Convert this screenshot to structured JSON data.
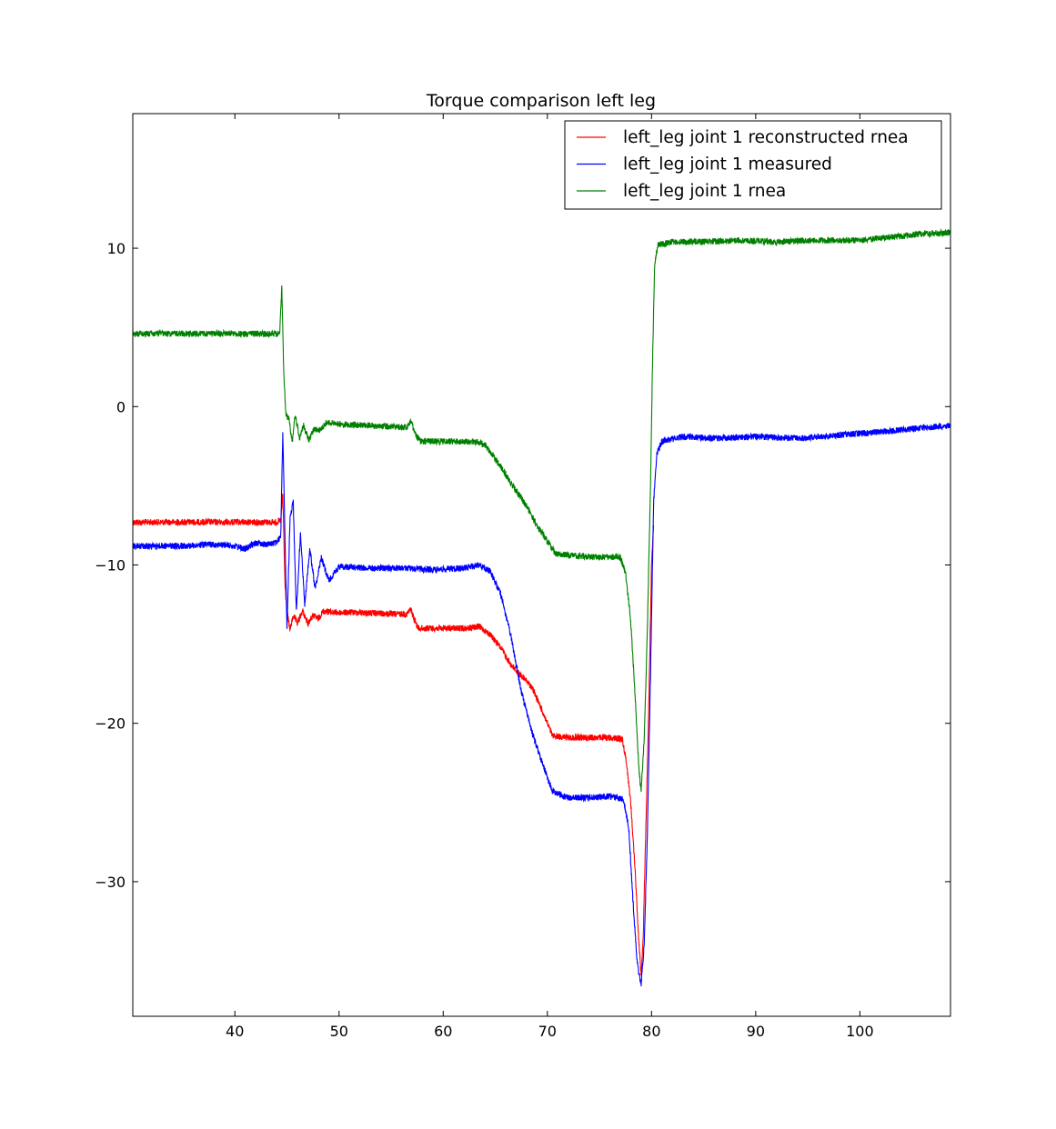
{
  "chart_data": {
    "type": "line",
    "title": "Torque comparison left leg",
    "xlabel": "",
    "ylabel": "",
    "xlim": [
      30.2,
      108.7
    ],
    "ylim": [
      -38.5,
      18.5
    ],
    "xticks": [
      40,
      50,
      60,
      70,
      80,
      90,
      100
    ],
    "yticks": [
      -30,
      -20,
      -10,
      0,
      10
    ],
    "ytick_labels": [
      "−30",
      "−20",
      "−10",
      "0",
      "10"
    ],
    "grid": false,
    "legend_position": "top-right",
    "series": [
      {
        "name": "left_leg joint 1 reconstructed rnea",
        "color": "#ff0000",
        "points": [
          [
            30.2,
            -7.3
          ],
          [
            36,
            -7.3
          ],
          [
            40,
            -7.3
          ],
          [
            44,
            -7.3
          ],
          [
            44.4,
            -7.2
          ],
          [
            44.6,
            -5.5
          ],
          [
            44.8,
            -11
          ],
          [
            45.0,
            -13
          ],
          [
            45.3,
            -14.1
          ],
          [
            45.6,
            -13.2
          ],
          [
            46.0,
            -13.7
          ],
          [
            46.5,
            -12.9
          ],
          [
            47.0,
            -13.7
          ],
          [
            47.5,
            -13.2
          ],
          [
            48.0,
            -13.4
          ],
          [
            48.5,
            -12.9
          ],
          [
            49.5,
            -13.0
          ],
          [
            52,
            -13.0
          ],
          [
            55,
            -13.1
          ],
          [
            56.5,
            -13.1
          ],
          [
            56.9,
            -12.8
          ],
          [
            57.2,
            -13.4
          ],
          [
            57.6,
            -14.0
          ],
          [
            59,
            -14.0
          ],
          [
            62,
            -14.0
          ],
          [
            63.5,
            -13.9
          ],
          [
            64.5,
            -14.4
          ],
          [
            65.5,
            -15.2
          ],
          [
            66.5,
            -16.3
          ],
          [
            67.5,
            -17.0
          ],
          [
            68.5,
            -17.7
          ],
          [
            69.5,
            -19.2
          ],
          [
            70.5,
            -20.8
          ],
          [
            72,
            -20.9
          ],
          [
            74,
            -20.9
          ],
          [
            76,
            -20.9
          ],
          [
            77.2,
            -21.0
          ],
          [
            77.6,
            -22.5
          ],
          [
            78.0,
            -25
          ],
          [
            78.4,
            -29
          ],
          [
            78.8,
            -34
          ],
          [
            79.0,
            -35.8
          ],
          [
            79.2,
            -33.5
          ],
          [
            79.4,
            -28
          ],
          [
            79.7,
            -20
          ],
          [
            80.0,
            -10
          ],
          [
            80.2,
            -7.5
          ]
        ]
      },
      {
        "name": "left_leg joint 1 measured",
        "color": "#0000ff",
        "points": [
          [
            30.2,
            -8.8
          ],
          [
            35,
            -8.8
          ],
          [
            38,
            -8.7
          ],
          [
            40,
            -8.8
          ],
          [
            41,
            -9.0
          ],
          [
            42,
            -8.6
          ],
          [
            43,
            -8.7
          ],
          [
            44,
            -8.6
          ],
          [
            44.4,
            -8.2
          ],
          [
            44.6,
            -1.5
          ],
          [
            44.8,
            -8
          ],
          [
            45.0,
            -14.0
          ],
          [
            45.3,
            -7
          ],
          [
            45.6,
            -6
          ],
          [
            45.9,
            -13
          ],
          [
            46.3,
            -8
          ],
          [
            46.7,
            -12.5
          ],
          [
            47.2,
            -9
          ],
          [
            47.7,
            -11.5
          ],
          [
            48.3,
            -9.5
          ],
          [
            49,
            -11
          ],
          [
            50,
            -10.1
          ],
          [
            53,
            -10.2
          ],
          [
            56,
            -10.2
          ],
          [
            59,
            -10.3
          ],
          [
            62,
            -10.2
          ],
          [
            63.5,
            -10.0
          ],
          [
            64.5,
            -10.4
          ],
          [
            65.5,
            -11.8
          ],
          [
            66.5,
            -14.5
          ],
          [
            67.5,
            -18
          ],
          [
            68.5,
            -20.5
          ],
          [
            69.5,
            -22.5
          ],
          [
            70.5,
            -24.3
          ],
          [
            72,
            -24.7
          ],
          [
            74,
            -24.7
          ],
          [
            76,
            -24.6
          ],
          [
            77.3,
            -24.8
          ],
          [
            77.8,
            -26.5
          ],
          [
            78.2,
            -31
          ],
          [
            78.6,
            -35
          ],
          [
            79.0,
            -36.5
          ],
          [
            79.3,
            -34
          ],
          [
            79.6,
            -27
          ],
          [
            79.9,
            -17
          ],
          [
            80.2,
            -6
          ],
          [
            80.5,
            -3
          ],
          [
            81,
            -2.2
          ],
          [
            83,
            -1.9
          ],
          [
            86,
            -2.0
          ],
          [
            90,
            -1.9
          ],
          [
            94,
            -2.0
          ],
          [
            98,
            -1.8
          ],
          [
            102,
            -1.6
          ],
          [
            105,
            -1.4
          ],
          [
            108.7,
            -1.2
          ]
        ]
      },
      {
        "name": "left_leg joint 1 rnea",
        "color": "#008000",
        "points": [
          [
            30.2,
            4.6
          ],
          [
            34,
            4.6
          ],
          [
            38,
            4.6
          ],
          [
            42,
            4.6
          ],
          [
            44.3,
            4.6
          ],
          [
            44.5,
            7.5
          ],
          [
            44.7,
            2
          ],
          [
            44.9,
            -0.5
          ],
          [
            45.2,
            -0.8
          ],
          [
            45.5,
            -2.3
          ],
          [
            45.8,
            -0.5
          ],
          [
            46.2,
            -2.0
          ],
          [
            46.6,
            -1.2
          ],
          [
            47.1,
            -2.1
          ],
          [
            47.6,
            -1.4
          ],
          [
            48.2,
            -1.5
          ],
          [
            48.8,
            -1.0
          ],
          [
            50,
            -1.1
          ],
          [
            53,
            -1.2
          ],
          [
            56.5,
            -1.3
          ],
          [
            56.9,
            -0.9
          ],
          [
            57.3,
            -1.7
          ],
          [
            57.8,
            -2.2
          ],
          [
            60,
            -2.2
          ],
          [
            63,
            -2.2
          ],
          [
            64,
            -2.4
          ],
          [
            65,
            -3.3
          ],
          [
            66,
            -4.3
          ],
          [
            67,
            -5.3
          ],
          [
            68,
            -6.3
          ],
          [
            69,
            -7.5
          ],
          [
            70,
            -8.5
          ],
          [
            70.8,
            -9.3
          ],
          [
            72,
            -9.4
          ],
          [
            75,
            -9.5
          ],
          [
            77,
            -9.5
          ],
          [
            77.5,
            -10.5
          ],
          [
            78,
            -13.5
          ],
          [
            78.4,
            -18
          ],
          [
            78.8,
            -23
          ],
          [
            79.0,
            -24.3
          ],
          [
            79.3,
            -21
          ],
          [
            79.6,
            -14
          ],
          [
            79.9,
            -5
          ],
          [
            80.1,
            3
          ],
          [
            80.3,
            9
          ],
          [
            80.6,
            10.2
          ],
          [
            82,
            10.4
          ],
          [
            85,
            10.4
          ],
          [
            88,
            10.5
          ],
          [
            92,
            10.4
          ],
          [
            96,
            10.5
          ],
          [
            100,
            10.5
          ],
          [
            103,
            10.7
          ],
          [
            106,
            10.9
          ],
          [
            108.7,
            11.0
          ]
        ]
      }
    ]
  }
}
